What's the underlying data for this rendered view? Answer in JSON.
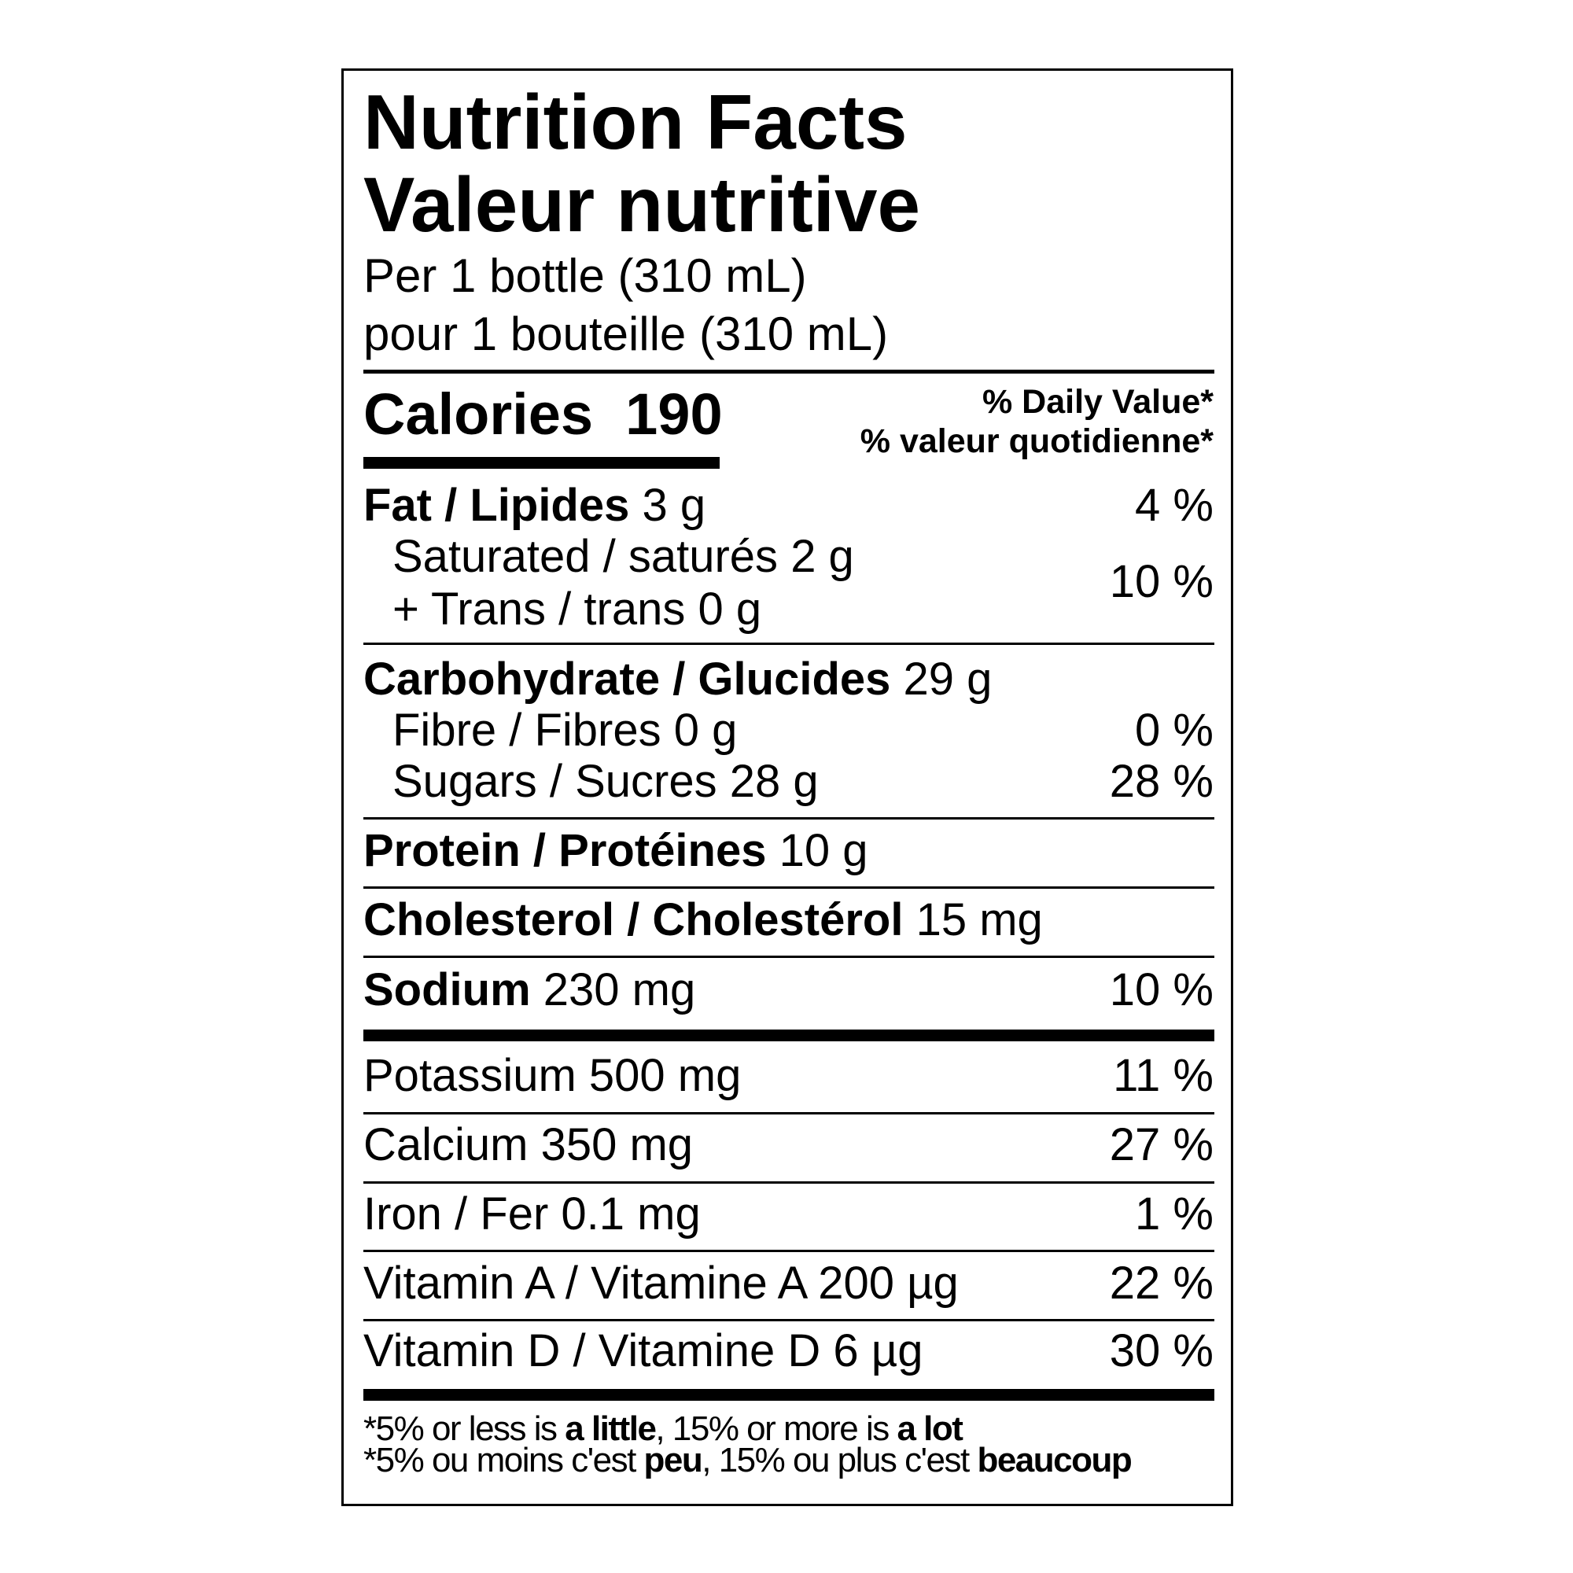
{
  "title_en": "Nutrition Facts",
  "title_fr": "Valeur nutritive",
  "serving_en": "Per 1 bottle (310 mL)",
  "serving_fr": "pour 1 bouteille (310 mL)",
  "calories": {
    "label": "Calories",
    "value": "190"
  },
  "dv_header_en": "% Daily Value*",
  "dv_header_fr": "% valeur quotidienne*",
  "fat": {
    "label": "Fat / Lipides",
    "amount": "3 g",
    "dv": "4 %"
  },
  "saturated": {
    "label": "Saturated / saturés",
    "amount": "2 g"
  },
  "trans": {
    "label": "+ Trans / trans",
    "amount": "0 g"
  },
  "sat_trans_dv": "10 %",
  "carbohydrate": {
    "label": "Carbohydrate / Glucides",
    "amount": "29 g"
  },
  "fibre": {
    "label": "Fibre / Fibres",
    "amount": "0 g",
    "dv": "0 %"
  },
  "sugars": {
    "label": "Sugars / Sucres",
    "amount": "28 g",
    "dv": "28 %"
  },
  "protein": {
    "label": "Protein / Protéines",
    "amount": "10 g"
  },
  "cholesterol": {
    "label": "Cholesterol / Cholestérol",
    "amount": "15 mg"
  },
  "sodium": {
    "label": "Sodium",
    "amount": "230 mg",
    "dv": "10 %"
  },
  "minerals": [
    {
      "label": "Potassium 500 mg",
      "dv": "11 %"
    },
    {
      "label": "Calcium 350 mg",
      "dv": "27 %"
    },
    {
      "label": "Iron / Fer 0.1 mg",
      "dv": "1 %"
    },
    {
      "label": "Vitamin A / Vitamine A 200 µg",
      "dv": "22 %"
    },
    {
      "label": "Vitamin D / Vitamine D 6 µg",
      "dv": "30 %"
    }
  ],
  "footnote_en": {
    "a": "*5% or less is ",
    "b": "a little",
    "c": ", 15% or more is ",
    "d": "a lot"
  },
  "footnote_fr": {
    "a": "*5% ou moins c'est ",
    "b": "peu",
    "c": ", 15% ou plus c'est ",
    "d": "beaucoup"
  }
}
